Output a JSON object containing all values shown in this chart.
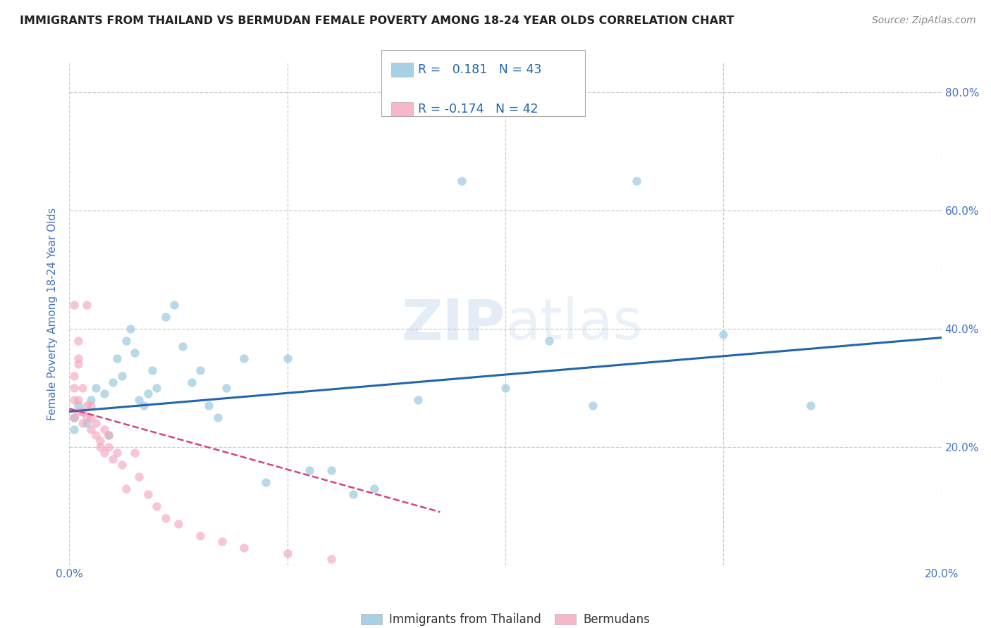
{
  "title": "IMMIGRANTS FROM THAILAND VS BERMUDAN FEMALE POVERTY AMONG 18-24 YEAR OLDS CORRELATION CHART",
  "source": "Source: ZipAtlas.com",
  "ylabel": "Female Poverty Among 18-24 Year Olds",
  "xmin": 0.0,
  "xmax": 0.2,
  "ymin": 0.0,
  "ymax": 0.85,
  "x_ticks": [
    0.0,
    0.05,
    0.1,
    0.15,
    0.2
  ],
  "x_tick_labels": [
    "0.0%",
    "",
    "",
    "",
    "20.0%"
  ],
  "y_ticks": [
    0.0,
    0.2,
    0.4,
    0.6,
    0.8
  ],
  "y_tick_labels": [
    "",
    "20.0%",
    "40.0%",
    "60.0%",
    "80.0%"
  ],
  "blue_scatter_x": [
    0.001,
    0.002,
    0.001,
    0.003,
    0.004,
    0.005,
    0.006,
    0.008,
    0.009,
    0.01,
    0.011,
    0.012,
    0.013,
    0.014,
    0.015,
    0.016,
    0.017,
    0.018,
    0.019,
    0.02,
    0.022,
    0.024,
    0.026,
    0.028,
    0.03,
    0.032,
    0.034,
    0.036,
    0.04,
    0.045,
    0.05,
    0.055,
    0.06,
    0.065,
    0.07,
    0.08,
    0.09,
    0.1,
    0.11,
    0.12,
    0.13,
    0.15,
    0.17
  ],
  "blue_scatter_y": [
    0.25,
    0.27,
    0.23,
    0.26,
    0.24,
    0.28,
    0.3,
    0.29,
    0.22,
    0.31,
    0.35,
    0.32,
    0.38,
    0.4,
    0.36,
    0.28,
    0.27,
    0.29,
    0.33,
    0.3,
    0.42,
    0.44,
    0.37,
    0.31,
    0.33,
    0.27,
    0.25,
    0.3,
    0.35,
    0.14,
    0.35,
    0.16,
    0.16,
    0.12,
    0.13,
    0.28,
    0.65,
    0.3,
    0.38,
    0.27,
    0.65,
    0.39,
    0.27
  ],
  "pink_scatter_x": [
    0.001,
    0.001,
    0.001,
    0.001,
    0.001,
    0.002,
    0.002,
    0.002,
    0.002,
    0.002,
    0.003,
    0.003,
    0.003,
    0.004,
    0.004,
    0.004,
    0.005,
    0.005,
    0.005,
    0.006,
    0.006,
    0.007,
    0.007,
    0.008,
    0.008,
    0.009,
    0.009,
    0.01,
    0.011,
    0.012,
    0.013,
    0.015,
    0.016,
    0.018,
    0.02,
    0.022,
    0.025,
    0.03,
    0.035,
    0.04,
    0.05,
    0.06
  ],
  "pink_scatter_y": [
    0.25,
    0.28,
    0.3,
    0.32,
    0.44,
    0.26,
    0.28,
    0.34,
    0.35,
    0.38,
    0.24,
    0.26,
    0.3,
    0.25,
    0.27,
    0.44,
    0.23,
    0.25,
    0.27,
    0.22,
    0.24,
    0.2,
    0.21,
    0.19,
    0.23,
    0.2,
    0.22,
    0.18,
    0.19,
    0.17,
    0.13,
    0.19,
    0.15,
    0.12,
    0.1,
    0.08,
    0.07,
    0.05,
    0.04,
    0.03,
    0.02,
    0.01
  ],
  "blue_line_x": [
    0.0,
    0.2
  ],
  "blue_line_y": [
    0.26,
    0.385
  ],
  "pink_line_x": [
    0.0,
    0.085
  ],
  "pink_line_y": [
    0.265,
    0.09
  ],
  "legend_R_blue": "0.181",
  "legend_N_blue": "43",
  "legend_R_pink": "-0.174",
  "legend_N_pink": "42",
  "blue_color": "#92c5de",
  "pink_color": "#f4a6bc",
  "blue_line_color": "#2166ac",
  "pink_line_color": "#d6437a",
  "watermark": "ZIPatlas",
  "bg_color": "#ffffff",
  "grid_color": "#cccccc",
  "title_color": "#222222",
  "axis_label_color": "#4472c4",
  "tick_label_color": "#4472c4"
}
